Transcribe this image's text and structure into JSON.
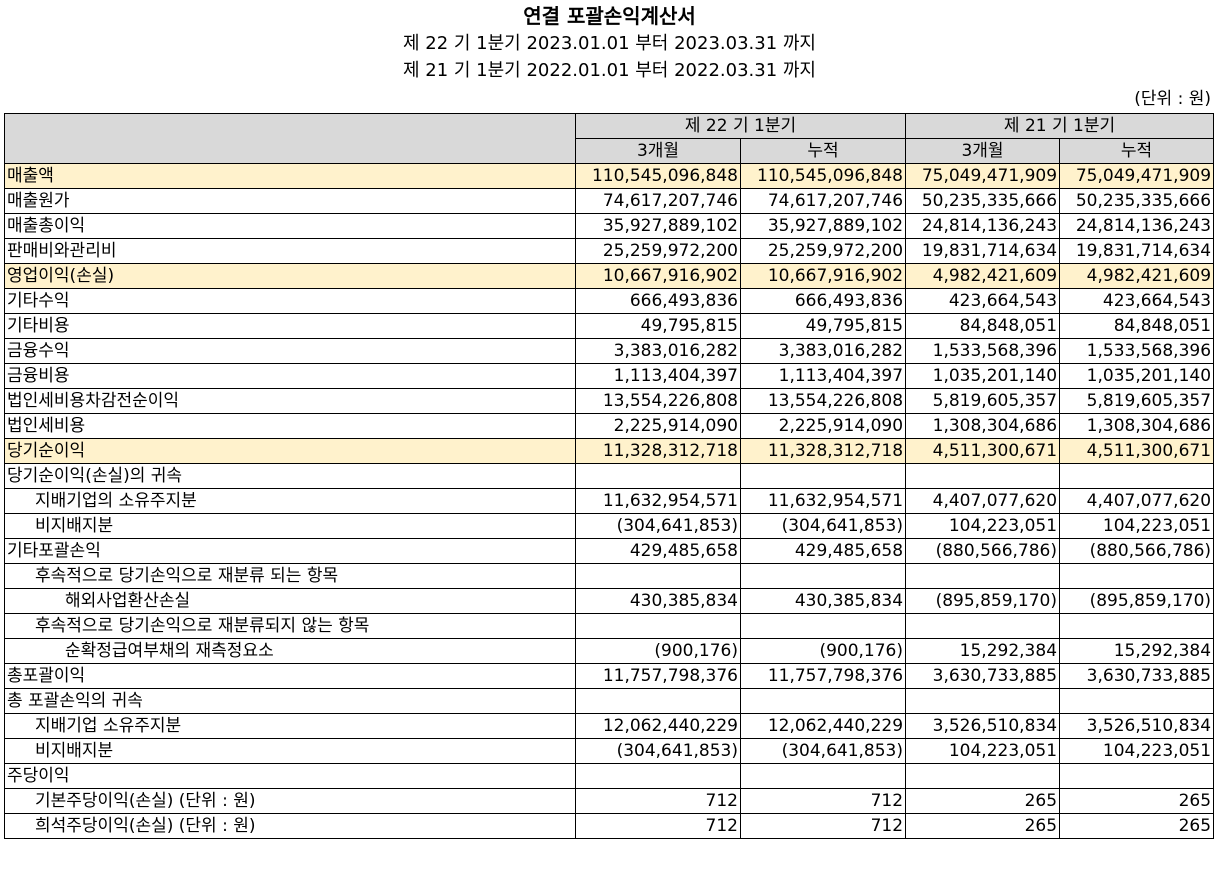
{
  "header": {
    "title": "연결 포괄손익계산서",
    "period_current": "제 22 기 1분기 2023.01.01 부터 2023.03.31 까지",
    "period_prior": "제 21 기 1분기 2022.01.01 부터 2022.03.31 까지",
    "unit": "(단위 : 원)"
  },
  "table": {
    "group_headers": [
      "제 22 기 1분기",
      "제 21 기 1분기"
    ],
    "sub_headers": [
      "3개월",
      "누적",
      "3개월",
      "누적"
    ],
    "rows": [
      {
        "label": "매출액",
        "values": [
          "110,545,096,848",
          "110,545,096,848",
          "75,049,471,909",
          "75,049,471,909"
        ]
      },
      {
        "label": "매출원가",
        "values": [
          "74,617,207,746",
          "74,617,207,746",
          "50,235,335,666",
          "50,235,335,666"
        ]
      },
      {
        "label": "매출총이익",
        "values": [
          "35,927,889,102",
          "35,927,889,102",
          "24,814,136,243",
          "24,814,136,243"
        ]
      },
      {
        "label": "판매비와관리비",
        "values": [
          "25,259,972,200",
          "25,259,972,200",
          "19,831,714,634",
          "19,831,714,634"
        ]
      },
      {
        "label": "영업이익(손실)",
        "values": [
          "10,667,916,902",
          "10,667,916,902",
          "4,982,421,609",
          "4,982,421,609"
        ]
      },
      {
        "label": "기타수익",
        "values": [
          "666,493,836",
          "666,493,836",
          "423,664,543",
          "423,664,543"
        ]
      },
      {
        "label": "기타비용",
        "values": [
          "49,795,815",
          "49,795,815",
          "84,848,051",
          "84,848,051"
        ]
      },
      {
        "label": "금융수익",
        "values": [
          "3,383,016,282",
          "3,383,016,282",
          "1,533,568,396",
          "1,533,568,396"
        ]
      },
      {
        "label": "금융비용",
        "values": [
          "1,113,404,397",
          "1,113,404,397",
          "1,035,201,140",
          "1,035,201,140"
        ]
      },
      {
        "label": "법인세비용차감전순이익",
        "values": [
          "13,554,226,808",
          "13,554,226,808",
          "5,819,605,357",
          "5,819,605,357"
        ]
      },
      {
        "label": "법인세비용",
        "values": [
          "2,225,914,090",
          "2,225,914,090",
          "1,308,304,686",
          "1,308,304,686"
        ]
      },
      {
        "label": "당기순이익",
        "values": [
          "11,328,312,718",
          "11,328,312,718",
          "4,511,300,671",
          "4,511,300,671"
        ]
      },
      {
        "label": "당기순이익(손실)의 귀속",
        "values": [
          "",
          "",
          "",
          ""
        ]
      },
      {
        "label": "지배기업의 소유주지분",
        "values": [
          "11,632,954,571",
          "11,632,954,571",
          "4,407,077,620",
          "4,407,077,620"
        ]
      },
      {
        "label": "비지배지분",
        "values": [
          "(304,641,853)",
          "(304,641,853)",
          "104,223,051",
          "104,223,051"
        ]
      },
      {
        "label": "기타포괄손익",
        "values": [
          "429,485,658",
          "429,485,658",
          "(880,566,786)",
          "(880,566,786)"
        ]
      },
      {
        "label": "후속적으로 당기손익으로 재분류 되는 항목",
        "values": [
          "",
          "",
          "",
          ""
        ]
      },
      {
        "label": "해외사업환산손실",
        "values": [
          "430,385,834",
          "430,385,834",
          "(895,859,170)",
          "(895,859,170)"
        ]
      },
      {
        "label": "후속적으로 당기손익으로 재분류되지 않는 항목",
        "values": [
          "",
          "",
          "",
          ""
        ]
      },
      {
        "label": "순확정급여부채의 재측정요소",
        "values": [
          "(900,176)",
          "(900,176)",
          "15,292,384",
          "15,292,384"
        ]
      },
      {
        "label": "총포괄이익",
        "values": [
          "11,757,798,376",
          "11,757,798,376",
          "3,630,733,885",
          "3,630,733,885"
        ]
      },
      {
        "label": "총 포괄손익의 귀속",
        "values": [
          "",
          "",
          "",
          ""
        ]
      },
      {
        "label": "지배기업 소유주지분",
        "values": [
          "12,062,440,229",
          "12,062,440,229",
          "3,526,510,834",
          "3,526,510,834"
        ]
      },
      {
        "label": "비지배지분",
        "values": [
          "(304,641,853)",
          "(304,641,853)",
          "104,223,051",
          "104,223,051"
        ]
      },
      {
        "label": "주당이익",
        "values": [
          "",
          "",
          "",
          ""
        ]
      },
      {
        "label": "기본주당이익(손실) (단위 : 원)",
        "values": [
          "712",
          "712",
          "265",
          "265"
        ]
      },
      {
        "label": "희석주당이익(손실) (단위 : 원)",
        "values": [
          "712",
          "712",
          "265",
          "265"
        ]
      }
    ]
  },
  "colors": {
    "header_bg": "#d9d9d9",
    "highlight_bg": "#fff2cc"
  }
}
